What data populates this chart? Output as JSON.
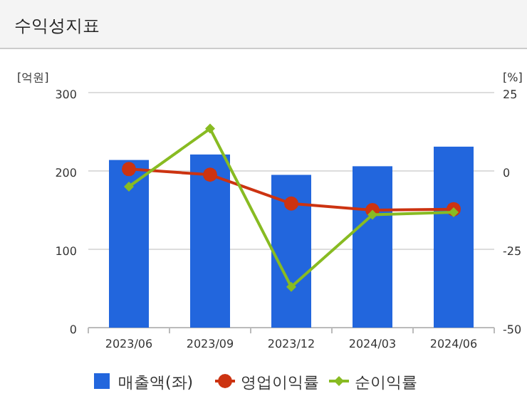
{
  "chart_data": {
    "type": "bar",
    "title": "수익성지표",
    "ylabel": "[억원]",
    "y2label": "[%]",
    "categories": [
      "2023/06",
      "2023/09",
      "2023/12",
      "2024/03",
      "2024/06"
    ],
    "series": [
      {
        "name": "매출액(좌)",
        "color": "#2266dd",
        "values": [
          214,
          221,
          195,
          206,
          231
        ]
      },
      {
        "name": "영업이익률",
        "type": "line",
        "axis": "y2",
        "color": "#cc3311",
        "marker": "circle",
        "values": [
          0.6,
          -1.2,
          -10.4,
          -12.5,
          -12.2
        ]
      },
      {
        "name": "순이익률",
        "type": "line",
        "axis": "y2",
        "color": "#88bb22",
        "marker": "diamond",
        "values": [
          -5,
          13.5,
          -37,
          -14,
          -13.2
        ]
      }
    ],
    "ylim": [
      0,
      300
    ],
    "yticks": [
      0,
      100,
      200,
      300
    ],
    "y2lim": [
      -50,
      25
    ],
    "y2ticks": [
      -50,
      -25,
      0,
      25
    ],
    "grid": "y",
    "legend": "bottom"
  }
}
